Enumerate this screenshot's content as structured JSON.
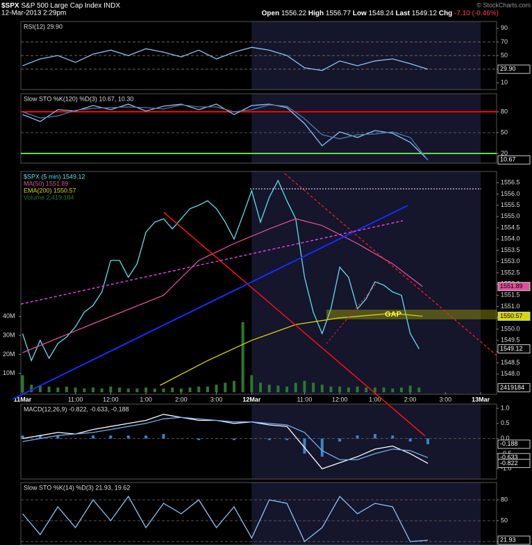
{
  "header": {
    "symbol": "$SPX",
    "name": "S&P 500 Large Cap Index INDX",
    "datetime": "12-Mar-2013 2:29pm",
    "quote": [
      [
        "Open",
        "1556.22"
      ],
      [
        "High",
        "1556.77"
      ],
      [
        "Low",
        "1548.24"
      ],
      [
        "Last",
        "1549.12"
      ],
      [
        "Chg",
        "-7.10 (-0.46%)"
      ]
    ],
    "credit": "© StockCharts.com"
  },
  "chart_data": [
    {
      "type": "line",
      "title": "RSI(12) 29.90",
      "ylim": [
        0,
        100
      ],
      "yticks": [
        90,
        70,
        50,
        30,
        10
      ],
      "hlines": [
        {
          "value": 70,
          "color": "#666666"
        },
        {
          "value": 50,
          "color": "#666666"
        },
        {
          "value": 30,
          "color": "#666666"
        }
      ],
      "series": [
        {
          "name": "RSI(12)",
          "color": "#8cc4f5",
          "type": "line",
          "x": [
            0,
            0.5,
            1,
            1.5,
            2,
            2.5,
            3,
            3.5,
            4,
            4.5,
            5,
            5.5,
            6,
            6.5,
            7,
            7.5,
            8,
            8.5,
            9,
            9.5,
            10,
            10.5,
            11,
            11.5
          ],
          "values": [
            35,
            45,
            50,
            40,
            52,
            58,
            50,
            60,
            55,
            48,
            58,
            45,
            55,
            62,
            58,
            50,
            32,
            28,
            42,
            35,
            42,
            45,
            38,
            29.9
          ]
        }
      ],
      "markers": [
        {
          "value": 29.9,
          "label": "29.90",
          "color": "#ffffff"
        }
      ]
    },
    {
      "type": "line",
      "title": "Slow STO %K(120) %D(3) 10.67, 10.30",
      "ylim": [
        6,
        106
      ],
      "yticks": [
        80,
        50,
        20
      ],
      "hlines": [
        {
          "value": 80,
          "color": "#ff0000"
        },
        {
          "value": 50,
          "color": "#555555"
        },
        {
          "value": 20,
          "color": "#66dd33"
        }
      ],
      "series": [
        {
          "name": "%K(120)",
          "color": "#8cc4f5",
          "type": "line",
          "x": [
            0,
            0.5,
            1,
            1.5,
            2,
            2.5,
            3,
            3.5,
            4,
            4.5,
            5,
            5.5,
            6,
            6.5,
            7,
            7.5,
            8,
            8.5,
            9,
            9.5,
            10,
            10.5,
            11,
            11.5
          ],
          "values": [
            76,
            66,
            83,
            81,
            89,
            83,
            91,
            81,
            88,
            91,
            83,
            91,
            76,
            89,
            91,
            86,
            63,
            31,
            51,
            43,
            53,
            49,
            36,
            10.67
          ]
        },
        {
          "name": "%D(3)",
          "color": "#4a7fb0",
          "type": "line",
          "x": [
            0,
            0.5,
            1,
            1.5,
            2,
            2.5,
            3,
            3.5,
            4,
            4.5,
            5,
            5.5,
            6,
            6.5,
            7,
            7.5,
            8,
            8.5,
            9,
            9.5,
            10,
            10.5,
            11,
            11.5
          ],
          "values": [
            80,
            71,
            74,
            82,
            85,
            86,
            87,
            86,
            84,
            90,
            87,
            87,
            80,
            83,
            90,
            88,
            70,
            47,
            41,
            47,
            48,
            51,
            43,
            10.3
          ]
        }
      ],
      "markers": [
        {
          "value": 10.67,
          "label": "10.67",
          "color": "#ffffff"
        }
      ]
    },
    {
      "type": "line",
      "xlim": [
        -0.05,
        13.45
      ],
      "ylim": [
        1547.1,
        1557.0
      ],
      "y2lim": [
        -1100000,
        116500000
      ],
      "xticks": [
        {
          "value": 0,
          "label": "11Mar"
        },
        {
          "value": 1.5,
          "label": "11:00"
        },
        {
          "value": 2.5,
          "label": "12:00"
        },
        {
          "value": 3.5,
          "label": "1:00"
        },
        {
          "value": 4.5,
          "label": "2:00"
        },
        {
          "value": 5.5,
          "label": "3:00"
        },
        {
          "value": 6.5,
          "label": "12Mar"
        },
        {
          "value": 8,
          "label": "11:00"
        },
        {
          "value": 9,
          "label": "12:00"
        },
        {
          "value": 10,
          "label": "1:00"
        },
        {
          "value": 11,
          "label": "2:00"
        },
        {
          "value": 12,
          "label": "3:00"
        },
        {
          "value": 13,
          "label": "13Mar"
        }
      ],
      "yticks": [
        1556.5,
        {
          "value": 1556,
          "label": "1556.0"
        },
        1555.5,
        {
          "value": 1555,
          "label": "1555.0"
        },
        1554.5,
        {
          "value": 1554,
          "label": "1554.0"
        },
        1553.5,
        {
          "value": 1553,
          "label": "1553.0"
        },
        1552.5,
        {
          "value": 1552,
          "label": "1552.0"
        },
        1551.5,
        {
          "value": 1551,
          "label": "1551.0"
        },
        1550.5,
        {
          "value": 1550,
          "label": "1550.0"
        },
        1549.5,
        {
          "value": 1549,
          "label": "1549.0"
        },
        1548.5,
        {
          "value": 1548,
          "label": "1548.0"
        }
      ],
      "y2ticks": [
        {
          "value": 40000000,
          "label": "40M"
        },
        {
          "value": 30000000,
          "label": "30M"
        },
        {
          "value": 20000000,
          "label": "20M"
        },
        {
          "value": 10000000,
          "label": "10M"
        }
      ],
      "series": [
        {
          "name": "$SPX (5 min) 1549.12",
          "color": "#5fe0ee",
          "type": "line",
          "x": [
            0,
            0.25,
            0.5,
            0.75,
            1,
            1.25,
            1.5,
            1.75,
            2,
            2.25,
            2.5,
            2.75,
            3,
            3.25,
            3.5,
            3.75,
            4,
            4.25,
            4.5,
            4.75,
            5,
            5.25,
            5.5,
            5.75,
            6,
            6.25,
            6.5,
            6.75,
            7,
            7.25,
            7.5,
            7.75,
            8,
            8.25,
            8.5,
            8.75,
            9,
            9.25,
            9.5,
            9.75,
            10,
            10.25,
            10.5,
            10.75,
            11,
            11.25
          ],
          "values": [
            1549.8,
            1548.6,
            1549.5,
            1548.7,
            1549.35,
            1549.65,
            1550.1,
            1550.75,
            1551.05,
            1551.65,
            1553.05,
            1553.05,
            1552.3,
            1552.9,
            1554.3,
            1554.75,
            1554.9,
            1554.45,
            1554.9,
            1555.35,
            1555.5,
            1555.7,
            1555.35,
            1554.75,
            1554.0,
            1555.05,
            1556.15,
            1554.75,
            1555.85,
            1556.6,
            1555.7,
            1554.9,
            1552.3,
            1550.75,
            1549.8,
            1550.9,
            1552.75,
            1552.3,
            1550.9,
            1551.35,
            1552.1,
            1551.95,
            1551.65,
            1551.5,
            1549.8,
            1549.12
          ]
        },
        {
          "name": "MA(50) 1551.89",
          "color": "#e0509a",
          "type": "line",
          "x": [
            0,
            2.3,
            4,
            5,
            6,
            7,
            7.75,
            8.5,
            9.5,
            10.5,
            11.35
          ],
          "values": [
            1548.95,
            1550.43,
            1551.5,
            1553.05,
            1553.8,
            1554.45,
            1554.9,
            1554.6,
            1553.8,
            1552.9,
            1551.89
          ]
        },
        {
          "name": "EMA(200) 1550.57",
          "color": "#d8d800",
          "type": "line",
          "x": [
            3.9,
            5.25,
            6.5,
            7.75,
            9,
            10.5,
            11.35
          ],
          "values": [
            1547.5,
            1548.6,
            1549.5,
            1550.2,
            1550.5,
            1550.7,
            1550.57
          ]
        },
        {
          "name": "Volume 2,419,184",
          "color": "#2a7a2a",
          "type": "bar",
          "axis": "y2",
          "x": [
            0,
            0.25,
            0.5,
            0.75,
            1,
            1.25,
            1.5,
            1.75,
            2,
            2.25,
            2.5,
            2.75,
            3,
            3.25,
            3.5,
            3.75,
            4,
            4.25,
            4.5,
            4.75,
            5,
            5.25,
            5.5,
            5.75,
            6,
            6.25,
            6.5,
            6.75,
            7,
            7.25,
            7.5,
            7.75,
            8,
            8.25,
            8.5,
            8.75,
            9,
            9.25,
            9.5,
            9.75,
            10,
            10.25,
            10.5,
            10.75,
            11,
            11.25
          ],
          "values": [
            9000000,
            4000000,
            3500000,
            3000000,
            2500000,
            3000000,
            2500000,
            2000000,
            2500000,
            2000000,
            3000000,
            2500000,
            2000000,
            2000000,
            2500000,
            2000000,
            2000000,
            2500000,
            2000000,
            2500000,
            3000000,
            3000000,
            4000000,
            5000000,
            6000000,
            37000000,
            9000000,
            5000000,
            4000000,
            3500000,
            3000000,
            5000000,
            6000000,
            5000000,
            4000000,
            3000000,
            3000000,
            2500000,
            3000000,
            2500000,
            2500000,
            2500000,
            2000000,
            2500000,
            3500000,
            2419184
          ]
        }
      ],
      "markers": [
        {
          "value": 1551.89,
          "label": "1551.89",
          "color": "#e0509a"
        },
        {
          "value": 1550.57,
          "label": "1550.57",
          "color": "#d8d800"
        },
        {
          "value": 1549.12,
          "label": "1549.12",
          "color": "#ffffff"
        },
        {
          "value": 2419184,
          "label": "2419184",
          "color": "#ffffff",
          "axis": "y2"
        }
      ],
      "annotations": [
        {
          "text": "GAP"
        }
      ]
    },
    {
      "type": "line",
      "title": "MACD(12,26,9) -0.822, -0.633, -0.188",
      "ylim": [
        -1.34,
        1.14
      ],
      "yticks": [
        {
          "value": 1,
          "label": "1.0"
        },
        0.5,
        {
          "value": 0,
          "label": "0.0"
        },
        -0.5,
        {
          "value": -1,
          "label": "-1.0"
        }
      ],
      "hlines": [
        {
          "value": 0,
          "color": "#555555"
        }
      ],
      "series": [
        {
          "name": "Histogram",
          "color": "#3b84c8",
          "type": "bar",
          "x": [
            0,
            0.5,
            1,
            1.5,
            2,
            2.5,
            3,
            3.5,
            4,
            4.5,
            5,
            5.5,
            6,
            6.5,
            7,
            7.5,
            8,
            8.5,
            9,
            9.5,
            10,
            10.5,
            11,
            11.5
          ],
          "values": [
            0.1,
            0.1,
            0.1,
            0,
            0.1,
            0.1,
            0.1,
            0.1,
            0.15,
            0,
            -0.05,
            0,
            -0.05,
            0,
            -0.05,
            -0.05,
            -0.5,
            -0.6,
            -0.1,
            0.1,
            0.15,
            0.1,
            -0.1,
            -0.188
          ]
        },
        {
          "name": "MACD",
          "color": "#ffffff",
          "type": "line",
          "x": [
            0,
            0.5,
            1,
            1.5,
            2,
            2.5,
            3,
            3.5,
            4,
            4.5,
            5,
            5.5,
            6,
            6.5,
            7,
            7.5,
            8,
            8.5,
            9,
            9.5,
            10,
            10.5,
            11,
            11.5
          ],
          "values": [
            0,
            0.1,
            0.2,
            0.15,
            0.3,
            0.4,
            0.5,
            0.6,
            0.8,
            0.7,
            0.6,
            0.6,
            0.5,
            0.55,
            0.45,
            0.4,
            -0.3,
            -1,
            -0.8,
            -0.6,
            -0.35,
            -0.25,
            -0.5,
            -0.822
          ]
        },
        {
          "name": "Signal",
          "color": "#6fb0f0",
          "type": "line",
          "x": [
            0,
            0.5,
            1,
            1.5,
            2,
            2.5,
            3,
            3.5,
            4,
            4.5,
            5,
            5.5,
            6,
            6.5,
            7,
            7.5,
            8,
            8.5,
            9,
            9.5,
            10,
            10.5,
            11,
            11.5
          ],
          "values": [
            -0.1,
            0,
            0.1,
            0.15,
            0.2,
            0.3,
            0.4,
            0.5,
            0.65,
            0.7,
            0.65,
            0.6,
            0.55,
            0.55,
            0.5,
            0.45,
            0.2,
            -0.4,
            -0.7,
            -0.7,
            -0.5,
            -0.35,
            -0.4,
            -0.633
          ]
        }
      ],
      "markers": [
        {
          "value": -0.188,
          "label": "-0.188",
          "color": "#ffffff"
        },
        {
          "value": -0.633,
          "label": "-0.633",
          "color": "#ffffff"
        },
        {
          "value": -0.822,
          "label": "-0.822",
          "color": "#ffffff"
        }
      ]
    },
    {
      "type": "line",
      "title": "Slow STO %K(14) %D(3) 21.93, 19.62",
      "ylim": [
        15,
        105
      ],
      "yticks": [
        80,
        50,
        20
      ],
      "hlines": [
        {
          "value": 80,
          "color": "#555555"
        },
        {
          "value": 50,
          "color": "#555555"
        },
        {
          "value": 20,
          "color": "#555555"
        }
      ],
      "series": [
        {
          "name": "%K(14)",
          "color": "#8cc4f5",
          "type": "line",
          "x": [
            0,
            0.5,
            1,
            1.5,
            2,
            2.5,
            3,
            3.5,
            4,
            4.5,
            5,
            5.5,
            6,
            6.5,
            7,
            7.5,
            8,
            8.5,
            9,
            9.5,
            10,
            10.5,
            11,
            11.5
          ],
          "values": [
            60,
            30,
            70,
            40,
            80,
            50,
            85,
            40,
            75,
            60,
            80,
            40,
            70,
            25,
            80,
            75,
            20,
            40,
            85,
            60,
            75,
            70,
            20,
            21.93
          ]
        }
      ],
      "markers": [
        {
          "value": 21.93,
          "label": "21.93",
          "color": "#ffffff"
        }
      ]
    }
  ]
}
